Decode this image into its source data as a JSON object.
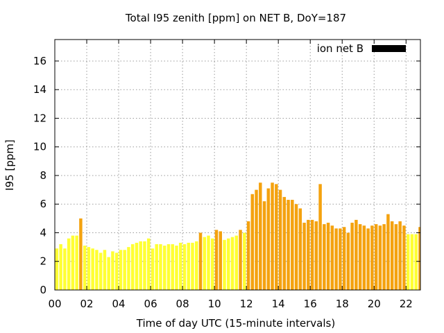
{
  "chart_data": {
    "type": "bar",
    "title": "Total I95 zenith [ppm] on NET B, DoY=187",
    "xlabel": "Time of day UTC (15-minute intervals)",
    "ylabel": "I95 [ppm]",
    "xlim": [
      0,
      22.9
    ],
    "ylim": [
      0,
      17.5
    ],
    "x_ticks": [
      "00",
      "02",
      "04",
      "06",
      "08",
      "10",
      "12",
      "14",
      "16",
      "18",
      "20",
      "22"
    ],
    "y_ticks": [
      "0",
      "2",
      "4",
      "6",
      "8",
      "10",
      "12",
      "14",
      "16"
    ],
    "grid": true,
    "legend_position": "top-right",
    "series": [
      {
        "name": "ion net B",
        "legend_color": "#000000",
        "colors": {
          "low": "#ffff33",
          "high": "#f4a20f"
        },
        "interval_hours": 0.25,
        "values": [
          2.9,
          3.2,
          2.9,
          3.6,
          3.8,
          3.8,
          5.0,
          3.1,
          3.0,
          2.9,
          2.8,
          2.6,
          2.8,
          2.3,
          2.7,
          2.6,
          2.8,
          2.8,
          3.0,
          3.2,
          3.3,
          3.4,
          3.4,
          3.6,
          2.9,
          3.2,
          3.2,
          3.1,
          3.2,
          3.2,
          3.1,
          3.3,
          3.2,
          3.3,
          3.3,
          3.4,
          4.0,
          3.7,
          3.8,
          3.6,
          4.2,
          4.1,
          3.5,
          3.6,
          3.7,
          3.8,
          4.2,
          4.0,
          4.8,
          6.7,
          7.0,
          7.5,
          6.2,
          7.1,
          7.5,
          7.4,
          7.0,
          6.5,
          6.3,
          6.3,
          6.0,
          5.7,
          4.7,
          4.9,
          4.9,
          4.8,
          7.4,
          4.6,
          4.7,
          4.5,
          4.3,
          4.3,
          4.4,
          4.0,
          4.7,
          4.9,
          4.6,
          4.5,
          4.3,
          4.5,
          4.6,
          4.5,
          4.6,
          5.3,
          4.8,
          4.6,
          4.8,
          4.5,
          3.9,
          3.9,
          3.9,
          4.4
        ],
        "highlight": [
          0,
          0,
          0,
          0,
          0,
          0,
          1,
          0,
          0,
          0,
          0,
          0,
          0,
          0,
          0,
          0,
          0,
          0,
          0,
          0,
          0,
          0,
          0,
          0,
          0,
          0,
          0,
          0,
          0,
          0,
          0,
          0,
          0,
          0,
          0,
          0,
          1,
          0,
          0,
          0,
          1,
          1,
          0,
          0,
          0,
          0,
          1,
          0,
          1,
          1,
          1,
          1,
          1,
          1,
          1,
          1,
          1,
          1,
          1,
          1,
          1,
          1,
          1,
          1,
          1,
          1,
          1,
          1,
          1,
          1,
          1,
          1,
          1,
          1,
          1,
          1,
          1,
          1,
          1,
          1,
          1,
          1,
          1,
          1,
          1,
          1,
          1,
          1,
          0,
          0,
          0,
          1
        ]
      }
    ]
  }
}
